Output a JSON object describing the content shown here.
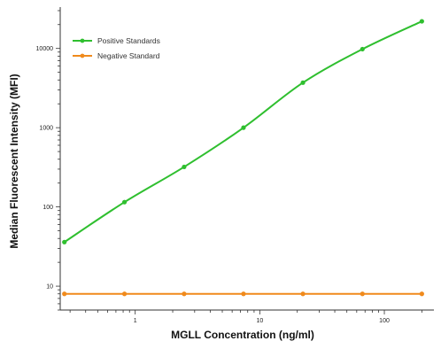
{
  "chart_data": {
    "type": "line",
    "title": "",
    "xlabel": "MGLL Concentration (ng/ml)",
    "ylabel": "Median Fluorescent Intensity (MFI)",
    "xscale": "log",
    "yscale": "log",
    "xlim": [
      0.25,
      250
    ],
    "ylim": [
      5,
      30000
    ],
    "x_ticks": [
      1,
      10,
      100
    ],
    "x_tick_labels": [
      "1",
      "10",
      "100"
    ],
    "y_ticks": [
      10,
      100,
      1000,
      10000
    ],
    "y_tick_labels": [
      "10",
      "100",
      "1000",
      "10000"
    ],
    "legend_position": "top-left",
    "series": [
      {
        "name": "Positive Standards",
        "color": "#2fbf2f",
        "marker": "circle",
        "x": [
          0.27,
          0.82,
          2.47,
          7.4,
          22.2,
          66.7,
          200
        ],
        "y": [
          36,
          115,
          320,
          1000,
          3700,
          9800,
          22000
        ]
      },
      {
        "name": "Negative Standard",
        "color": "#f08a1c",
        "marker": "circle",
        "x": [
          0.27,
          0.82,
          2.47,
          7.4,
          22.2,
          66.7,
          200
        ],
        "y": [
          8,
          8,
          8,
          8,
          8,
          8,
          8
        ]
      }
    ]
  }
}
